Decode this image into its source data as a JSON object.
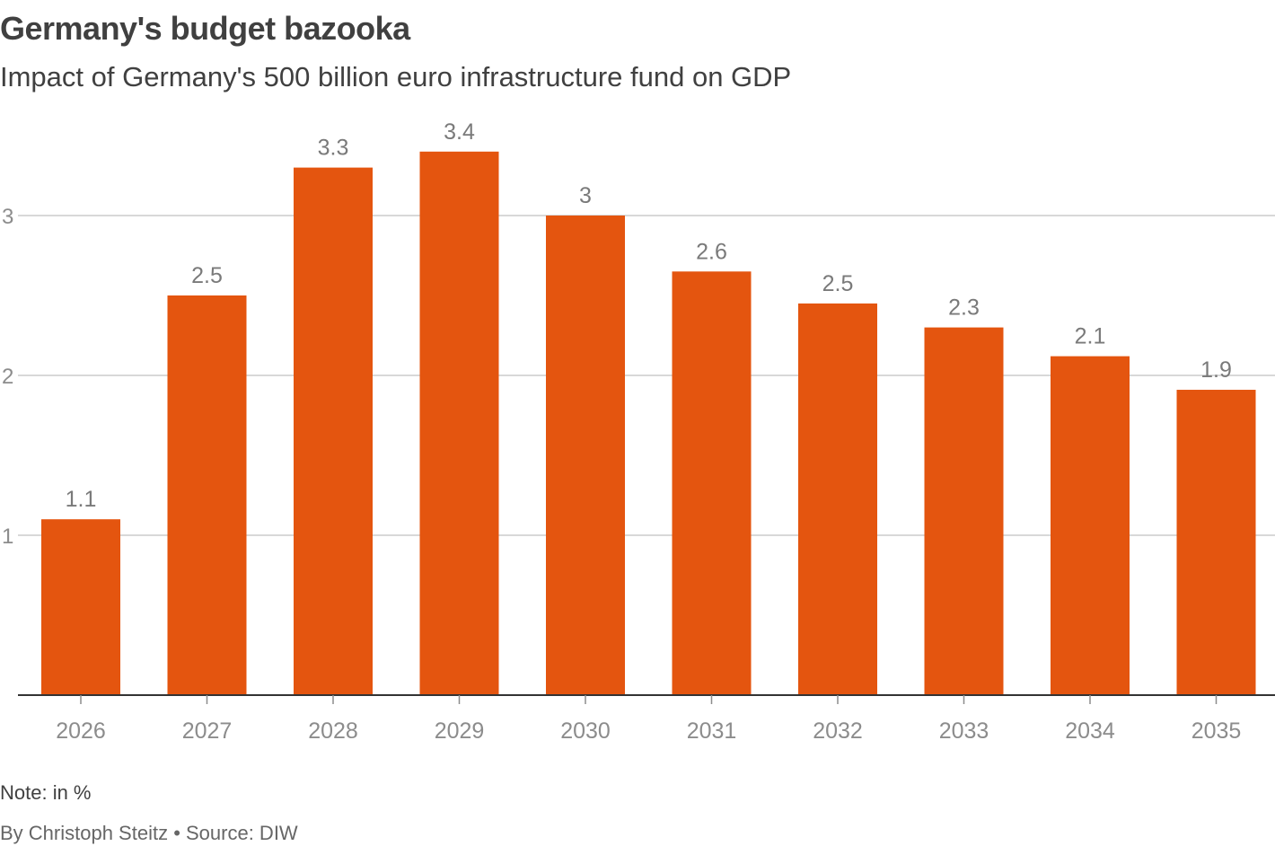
{
  "header": {
    "title": "Germany's budget bazooka",
    "subtitle": "Impact of Germany's 500 billion euro infrastructure fund on GDP"
  },
  "footer": {
    "note": "Note: in %",
    "byline": "By Christoph Steitz • Source: DIW"
  },
  "colors": {
    "bar": "#e4550f",
    "grid": "#cccccc",
    "axis": "#333333",
    "text": "#404040",
    "muted": "#8c8c8c"
  },
  "chart_data": {
    "type": "bar",
    "categories": [
      "2026",
      "2027",
      "2028",
      "2029",
      "2030",
      "2031",
      "2032",
      "2033",
      "2034",
      "2035"
    ],
    "values": [
      1.1,
      2.5,
      3.3,
      3.4,
      3.0,
      2.65,
      2.45,
      2.3,
      2.12,
      1.91
    ],
    "data_labels": [
      "1.1",
      "2.5",
      "3.3",
      "3.4",
      "3",
      "2.6",
      "2.5",
      "2.3",
      "2.1",
      "1.9"
    ],
    "title": "Germany's budget bazooka",
    "subtitle": "Impact of Germany's 500 billion euro infrastructure fund on GDP",
    "xlabel": "",
    "ylabel": "",
    "ylim": [
      0,
      3.4
    ],
    "yticks": [
      1,
      2,
      3
    ],
    "ytick_labels": [
      "1",
      "2",
      "3"
    ],
    "grid": true,
    "legend": "none"
  }
}
